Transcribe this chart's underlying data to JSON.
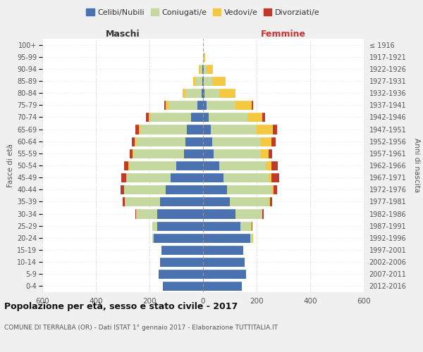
{
  "age_groups": [
    "0-4",
    "5-9",
    "10-14",
    "15-19",
    "20-24",
    "25-29",
    "30-34",
    "35-39",
    "40-44",
    "45-49",
    "50-54",
    "55-59",
    "60-64",
    "65-69",
    "70-74",
    "75-79",
    "80-84",
    "85-89",
    "90-94",
    "95-99",
    "100+"
  ],
  "birth_years": [
    "2012-2016",
    "2007-2011",
    "2002-2006",
    "1997-2001",
    "1992-1996",
    "1987-1991",
    "1982-1986",
    "1977-1981",
    "1972-1976",
    "1967-1971",
    "1962-1966",
    "1957-1961",
    "1952-1956",
    "1947-1951",
    "1942-1946",
    "1937-1941",
    "1932-1936",
    "1927-1931",
    "1922-1926",
    "1917-1921",
    "≤ 1916"
  ],
  "males": {
    "celibi": [
      150,
      165,
      160,
      155,
      185,
      170,
      170,
      160,
      140,
      120,
      100,
      70,
      65,
      60,
      45,
      20,
      5,
      3,
      2,
      0,
      0
    ],
    "coniugati": [
      0,
      0,
      0,
      0,
      5,
      20,
      80,
      130,
      155,
      165,
      175,
      190,
      185,
      175,
      150,
      110,
      60,
      25,
      8,
      1,
      0
    ],
    "vedovi": [
      0,
      0,
      0,
      0,
      0,
      0,
      0,
      1,
      1,
      2,
      3,
      3,
      5,
      5,
      8,
      10,
      12,
      8,
      5,
      0,
      0
    ],
    "divorziati": [
      0,
      0,
      0,
      0,
      0,
      0,
      3,
      8,
      12,
      18,
      18,
      10,
      12,
      12,
      10,
      5,
      0,
      0,
      0,
      0,
      0
    ]
  },
  "females": {
    "nubili": [
      145,
      160,
      155,
      150,
      175,
      140,
      120,
      100,
      90,
      75,
      60,
      40,
      35,
      30,
      20,
      12,
      5,
      3,
      2,
      0,
      0
    ],
    "coniugate": [
      0,
      0,
      0,
      0,
      10,
      40,
      100,
      145,
      165,
      170,
      175,
      175,
      180,
      170,
      145,
      110,
      55,
      30,
      10,
      2,
      0
    ],
    "vedove": [
      0,
      0,
      0,
      0,
      1,
      2,
      2,
      4,
      8,
      10,
      20,
      30,
      40,
      60,
      55,
      60,
      60,
      50,
      25,
      5,
      0
    ],
    "divorziate": [
      0,
      0,
      0,
      0,
      1,
      2,
      3,
      8,
      12,
      30,
      25,
      12,
      15,
      15,
      12,
      5,
      2,
      2,
      0,
      0,
      0
    ]
  },
  "colors": {
    "celibi_nubili": "#4a72b0",
    "coniugati_e": "#c5d8a0",
    "vedovi_e": "#f5c842",
    "divorziati_e": "#c0392b"
  },
  "title": "Popolazione per età, sesso e stato civile - 2017",
  "subtitle": "COMUNE DI TERRALBA (OR) - Dati ISTAT 1° gennaio 2017 - Elaborazione TUTTITALIA.IT",
  "xlabel_left": "Maschi",
  "xlabel_right": "Femmine",
  "ylabel_left": "Fasce di età",
  "ylabel_right": "Anni di nascita",
  "xlim": 600,
  "legend_labels": [
    "Celibi/Nubili",
    "Coniugati/e",
    "Vedovi/e",
    "Divorziati/e"
  ],
  "bg_color": "#f0f0f0",
  "plot_bg": "#ffffff"
}
